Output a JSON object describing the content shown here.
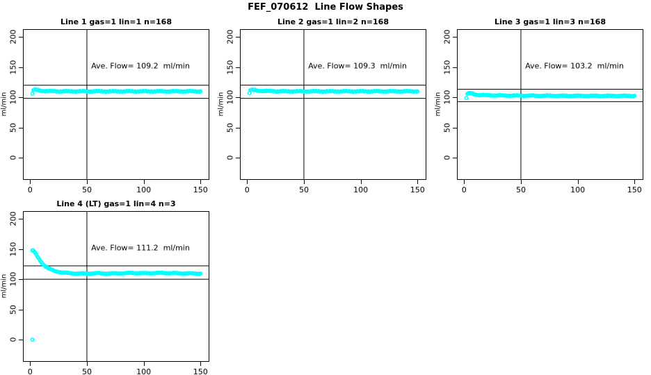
{
  "page": {
    "title": "FEF_070612  Line Flow Shapes"
  },
  "colors": {
    "points": "#00FFFF",
    "axis": "#000000",
    "background": "#FFFFFF"
  },
  "chart_data": [
    {
      "type": "scatter",
      "title": "Line 1 gas=1 lin=1 n=168",
      "annotation": "Ave. Flow= 109.2  ml/min",
      "ave_flow_ml_min": 109.2,
      "n": 168,
      "ylabel": "ml/min",
      "xticks": [
        0,
        50,
        100,
        150
      ],
      "yticks": [
        0,
        50,
        100,
        150,
        200
      ],
      "xlim": [
        -4,
        156
      ],
      "ylim": [
        -35,
        212
      ],
      "vline_x": 50,
      "hlines": [
        120.1,
        98.3
      ],
      "series_anchors": [
        [
          2,
          106
        ],
        [
          3,
          112
        ],
        [
          4,
          113
        ],
        [
          6,
          112
        ],
        [
          9,
          111
        ],
        [
          14,
          110.5
        ],
        [
          25,
          110
        ],
        [
          60,
          110
        ],
        [
          100,
          110
        ],
        [
          150,
          110
        ]
      ],
      "extra_points": [],
      "n_points": 168
    },
    {
      "type": "scatter",
      "title": "Line 2 gas=1 lin=2 n=168",
      "annotation": "Ave. Flow= 109.3  ml/min",
      "ave_flow_ml_min": 109.3,
      "n": 168,
      "ylabel": "ml/min",
      "xticks": [
        0,
        50,
        100,
        150
      ],
      "yticks": [
        0,
        50,
        100,
        150,
        200
      ],
      "xlim": [
        -4,
        156
      ],
      "ylim": [
        -35,
        212
      ],
      "vline_x": 50,
      "hlines": [
        120.2,
        98.4
      ],
      "series_anchors": [
        [
          2,
          107
        ],
        [
          3,
          112
        ],
        [
          4,
          112.5
        ],
        [
          6,
          112
        ],
        [
          10,
          111
        ],
        [
          16,
          110.5
        ],
        [
          30,
          110
        ],
        [
          80,
          110
        ],
        [
          150,
          110
        ]
      ],
      "extra_points": [],
      "n_points": 168
    },
    {
      "type": "scatter",
      "title": "Line 3 gas=1 lin=3 n=168",
      "annotation": "Ave. Flow= 103.2  ml/min",
      "ave_flow_ml_min": 103.2,
      "n": 168,
      "ylabel": "ml/min",
      "xticks": [
        0,
        50,
        100,
        150
      ],
      "yticks": [
        0,
        50,
        100,
        150,
        200
      ],
      "xlim": [
        -4,
        156
      ],
      "ylim": [
        -35,
        212
      ],
      "vline_x": 50,
      "hlines": [
        113.5,
        92.9
      ],
      "series_anchors": [
        [
          2,
          99
        ],
        [
          3,
          106
        ],
        [
          4,
          107
        ],
        [
          6,
          106.5
        ],
        [
          9,
          105
        ],
        [
          13,
          104
        ],
        [
          20,
          103.5
        ],
        [
          35,
          103
        ],
        [
          90,
          102.5
        ],
        [
          150,
          102.5
        ]
      ],
      "extra_points": [],
      "n_points": 168
    },
    {
      "type": "scatter",
      "title": "Line 4 (LT) gas=1 lin=4 n=3",
      "annotation": "Ave. Flow= 111.2  ml/min",
      "ave_flow_ml_min": 111.2,
      "n": 3,
      "ylabel": "ml/min",
      "xticks": [
        0,
        50,
        100,
        150
      ],
      "yticks": [
        0,
        50,
        100,
        150,
        200
      ],
      "xlim": [
        -4,
        156
      ],
      "ylim": [
        -35,
        212
      ],
      "vline_x": 50,
      "hlines": [
        122.3,
        100.1
      ],
      "series_anchors": [
        [
          2,
          148
        ],
        [
          3,
          147.5
        ],
        [
          4,
          145
        ],
        [
          5,
          142
        ],
        [
          6,
          139
        ],
        [
          7,
          136
        ],
        [
          8,
          133
        ],
        [
          9,
          130.5
        ],
        [
          10,
          128
        ],
        [
          11,
          126
        ],
        [
          12,
          124
        ],
        [
          13,
          122.5
        ],
        [
          14,
          121
        ],
        [
          16,
          118.5
        ],
        [
          18,
          116.5
        ],
        [
          20,
          115
        ],
        [
          22,
          113.5
        ],
        [
          25,
          112.5
        ],
        [
          28,
          111.5
        ],
        [
          32,
          110.5
        ],
        [
          36,
          110
        ],
        [
          42,
          109.5
        ],
        [
          50,
          109.5
        ],
        [
          60,
          110
        ],
        [
          70,
          109.5
        ],
        [
          80,
          110
        ],
        [
          90,
          110.5
        ],
        [
          100,
          110
        ],
        [
          115,
          110.5
        ],
        [
          130,
          110
        ],
        [
          150,
          109.5
        ]
      ],
      "extra_points": [
        [
          2,
          0
        ]
      ],
      "n_points": 168
    }
  ]
}
